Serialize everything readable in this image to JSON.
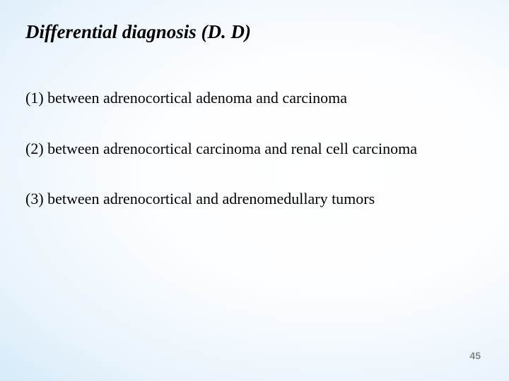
{
  "slide": {
    "title": "Differential diagnosis (D. D)",
    "items": [
      "(1) between adrenocortical adenoma and carcinoma",
      "(2) between adrenocortical carcinoma and renal cell carcinoma",
      "(3) between adrenocortical and adrenomedullary tumors"
    ],
    "page_number": "45",
    "background_gradient": {
      "inner": "#ffffff",
      "mid": "#eaf4fc",
      "outer": "#a8d3f0"
    },
    "title_fontsize": 27,
    "item_fontsize": 22,
    "pagenum_fontsize": 14,
    "pagenum_color": "#868686",
    "text_color": "#000000",
    "font_family": "Times New Roman"
  }
}
